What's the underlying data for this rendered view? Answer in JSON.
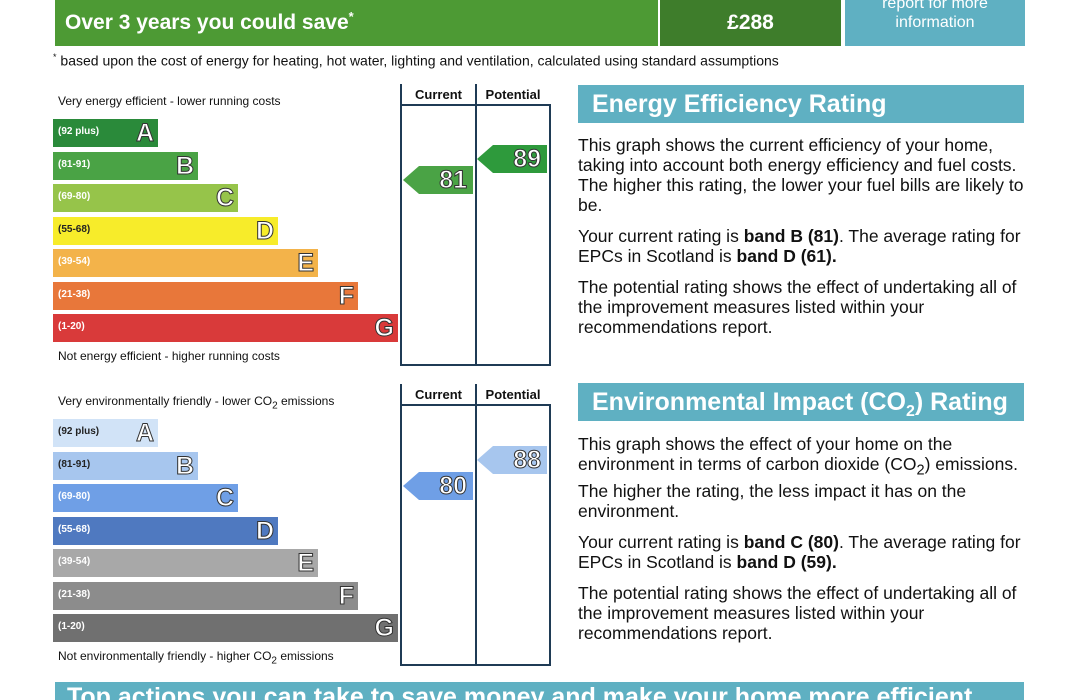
{
  "savings": {
    "label": "Over 3 years you could save",
    "label_marker": "*",
    "value": "£288",
    "report_line1": "report for more",
    "report_line2": "information",
    "footnote_marker": "*",
    "footnote": "based upon the cost of energy for heating, hot water, lighting and ventilation, calculated using standard assumptions"
  },
  "energy_chart": {
    "top_caption": "Very energy efficient - lower running costs",
    "bottom_caption": "Not energy efficient - higher running costs",
    "current_header": "Current",
    "potential_header": "Potential",
    "current_value": "81",
    "potential_value": "89",
    "current_color": "#4aa345",
    "potential_color": "#2e9a3c",
    "bands": [
      {
        "letter": "A",
        "range": "(92 plus)",
        "color": "#2a8a3a"
      },
      {
        "letter": "B",
        "range": "(81-91)",
        "color": "#4aa345"
      },
      {
        "letter": "C",
        "range": "(69-80)",
        "color": "#96c44a"
      },
      {
        "letter": "D",
        "range": "(55-68)",
        "color": "#f7ec2a"
      },
      {
        "letter": "E",
        "range": "(39-54)",
        "color": "#f3b34a"
      },
      {
        "letter": "F",
        "range": "(21-38)",
        "color": "#e8773a"
      },
      {
        "letter": "G",
        "range": "(1-20)",
        "color": "#d93a3a"
      }
    ]
  },
  "co2_chart": {
    "top_caption_pre": "Very environmentally friendly - lower CO",
    "top_caption_sub": "2",
    "top_caption_post": " emissions",
    "bottom_caption_pre": "Not environmentally friendly - higher CO",
    "bottom_caption_sub": "2",
    "bottom_caption_post": " emissions",
    "current_header": "Current",
    "potential_header": "Potential",
    "current_value": "80",
    "potential_value": "88",
    "current_color": "#6f9fe6",
    "potential_color": "#a7c6ee",
    "bands": [
      {
        "letter": "A",
        "range": "(92 plus)",
        "color": "#d1e3f7"
      },
      {
        "letter": "B",
        "range": "(81-91)",
        "color": "#a7c6ee"
      },
      {
        "letter": "C",
        "range": "(69-80)",
        "color": "#6f9fe6"
      },
      {
        "letter": "D",
        "range": "(55-68)",
        "color": "#4f79c0"
      },
      {
        "letter": "E",
        "range": "(39-54)",
        "color": "#a8a8a8"
      },
      {
        "letter": "F",
        "range": "(21-38)",
        "color": "#8c8c8c"
      },
      {
        "letter": "G",
        "range": "(1-20)",
        "color": "#707070"
      }
    ]
  },
  "energy_panel": {
    "heading": "Energy Efficiency Rating",
    "para1": "This graph shows the current efficiency of your home, taking into account both energy efficiency and fuel costs. The higher this rating, the lower your fuel bills are likely to be.",
    "para2_pre": "Your current rating is ",
    "para2_bold1": "band B (81)",
    "para2_mid": ". The average rating for EPCs in Scotland is ",
    "para2_bold2": "band D (61).",
    "para3": "The potential rating shows the effect of undertaking all of the improvement measures listed within your recommendations report."
  },
  "co2_panel": {
    "heading_pre": "Environmental Impact (CO",
    "heading_sub": "2",
    "heading_post": ") Rating",
    "para1_pre": "This graph shows the effect of your home on the environment in terms of carbon dioxide (CO",
    "para1_sub": "2",
    "para1_post": ") emissions. The higher the rating, the less impact it has on the environment.",
    "para2_pre": "Your current rating is ",
    "para2_bold1": "band C (80)",
    "para2_mid": ". The average rating for EPCs in Scotland is ",
    "para2_bold2": "band D (59).",
    "para3": "The potential rating shows the effect of undertaking all of the improvement measures listed within your recommendations report."
  },
  "bottom_banner": {
    "text": "Top actions you can take to save money and make your home more efficient"
  }
}
